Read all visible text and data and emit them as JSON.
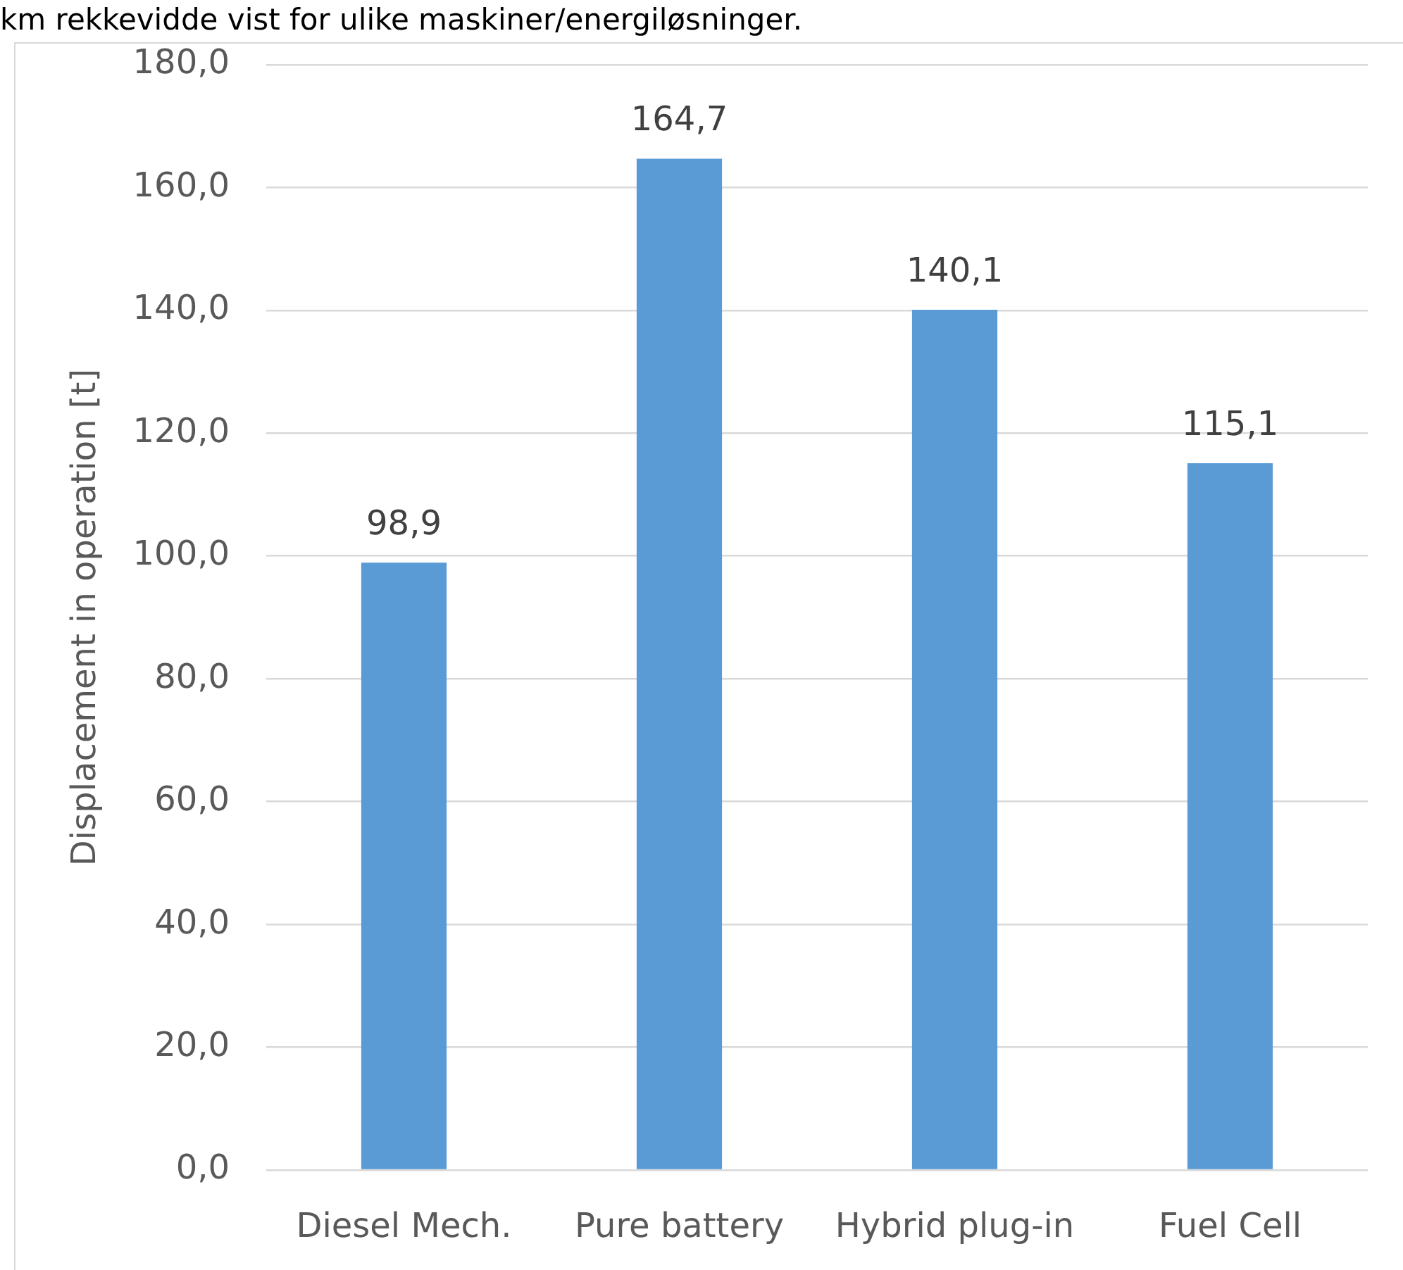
{
  "chart_data": {
    "type": "bar",
    "annotations": [
      "km rekkevidde vist for ulike maskiner/energiløsninger."
    ],
    "ylabel": "Displacement in operation [t]",
    "categories": [
      "Diesel Mech.",
      "Pure battery",
      "Hybrid plug-in",
      "Fuel Cell"
    ],
    "values": [
      98.9,
      164.7,
      140.1,
      115.1
    ],
    "value_labels": [
      "98,9",
      "164,7",
      "140,1",
      "115,1"
    ],
    "color": "#5b9bd5",
    "ylim": [
      0,
      180
    ],
    "yticks": [
      {
        "value": 0,
        "label": "0,0"
      },
      {
        "value": 20,
        "label": "20,0"
      },
      {
        "value": 40,
        "label": "40,0"
      },
      {
        "value": 60,
        "label": "60,0"
      },
      {
        "value": 80,
        "label": "80,0"
      },
      {
        "value": 100,
        "label": "100,0"
      },
      {
        "value": 120,
        "label": "120,0"
      },
      {
        "value": 140,
        "label": "140,0"
      },
      {
        "value": 160,
        "label": "160,0"
      },
      {
        "value": 180,
        "label": "180,0"
      }
    ],
    "grid": "y"
  }
}
